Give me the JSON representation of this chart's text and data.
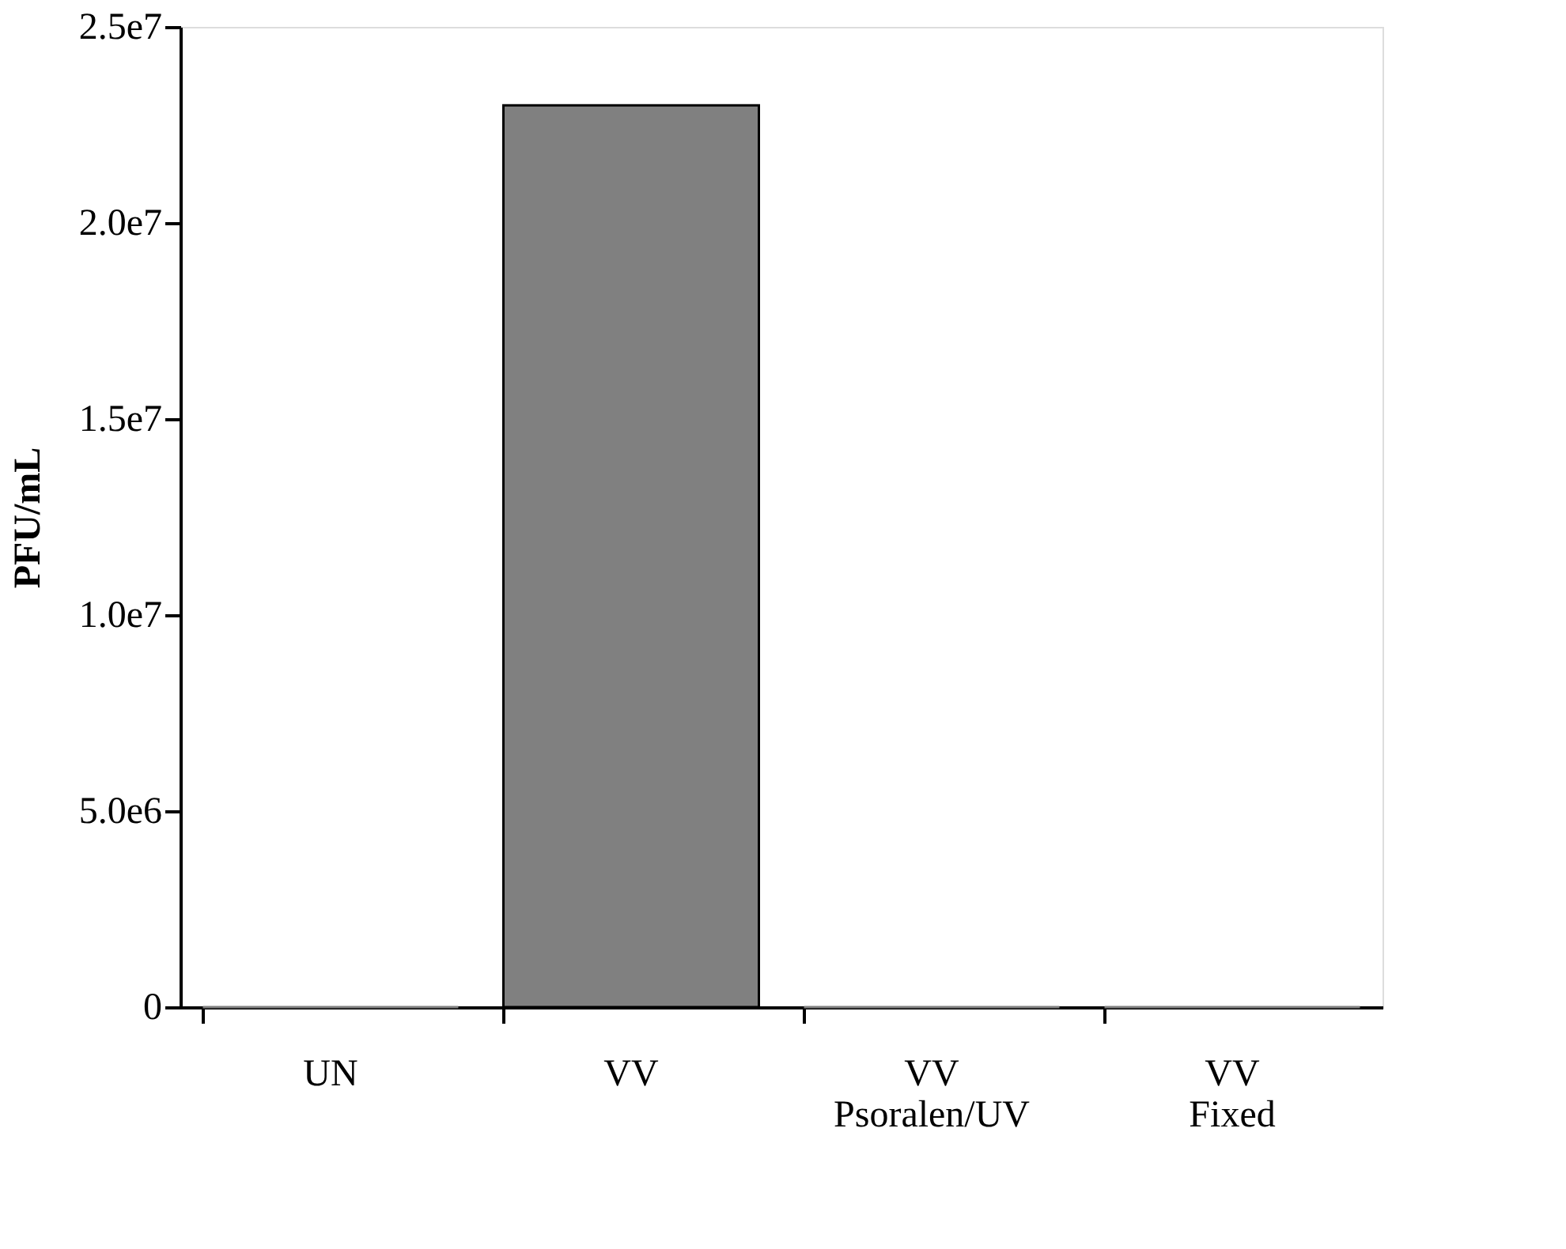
{
  "chart_data": {
    "type": "bar",
    "ylabel": "PFU/mL",
    "categories": [
      "UN",
      "VV",
      "VV\nPsoralen/UV",
      "VV\nFixed"
    ],
    "values": [
      0,
      23000000,
      0,
      0
    ],
    "color": "#808080",
    "ylim": [
      0,
      25000000
    ],
    "yticks": [
      0,
      {
        "value": 5000000,
        "label": "5.0e6"
      },
      {
        "value": 10000000,
        "label": "1.0e7"
      },
      {
        "value": 15000000,
        "label": "1.5e7"
      },
      {
        "value": 20000000,
        "label": "2.0e7"
      },
      {
        "value": 25000000,
        "label": "2.5e7"
      }
    ],
    "grid": false
  }
}
